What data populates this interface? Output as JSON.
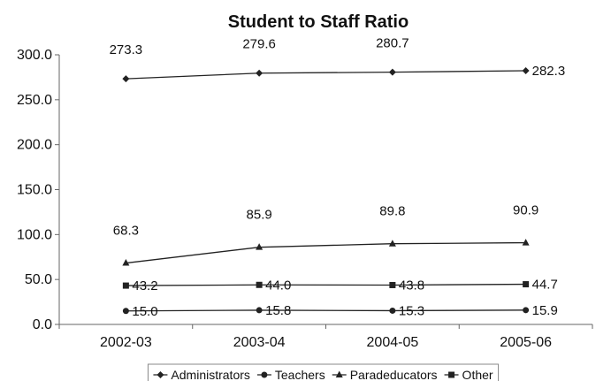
{
  "chart_data": {
    "type": "line",
    "title": "Student to Staff Ratio",
    "xlabel": "",
    "ylabel": "",
    "ylim": [
      0,
      300
    ],
    "y_ticks": [
      "0.0",
      "50.0",
      "100.0",
      "150.0",
      "200.0",
      "250.0",
      "300.0"
    ],
    "categories": [
      "2002-03",
      "2003-04",
      "2004-05",
      "2005-06"
    ],
    "grid": false,
    "legend_position": "bottom",
    "series": [
      {
        "name": "Administrators",
        "marker": "diamond",
        "values": [
          273.3,
          279.6,
          280.7,
          282.3
        ],
        "labels": [
          "273.3",
          "279.6",
          "280.7",
          "282.3"
        ]
      },
      {
        "name": "Teachers",
        "marker": "circle",
        "values": [
          15.0,
          15.8,
          15.3,
          15.9
        ],
        "labels": [
          "15.0",
          "15.8",
          "15.3",
          "15.9"
        ]
      },
      {
        "name": "Paradeducators",
        "marker": "triangle",
        "values": [
          68.3,
          85.9,
          89.8,
          90.9
        ],
        "labels": [
          "68.3",
          "85.9",
          "89.8",
          "90.9"
        ]
      },
      {
        "name": "Other",
        "marker": "square",
        "values": [
          43.2,
          44.0,
          43.8,
          44.7
        ],
        "labels": [
          "43.2",
          "44.0",
          "43.8",
          "44.7"
        ]
      }
    ],
    "colors": {
      "line": "#222222",
      "text": "#111111",
      "axis": "#666666",
      "legend_border": "#888888"
    }
  }
}
